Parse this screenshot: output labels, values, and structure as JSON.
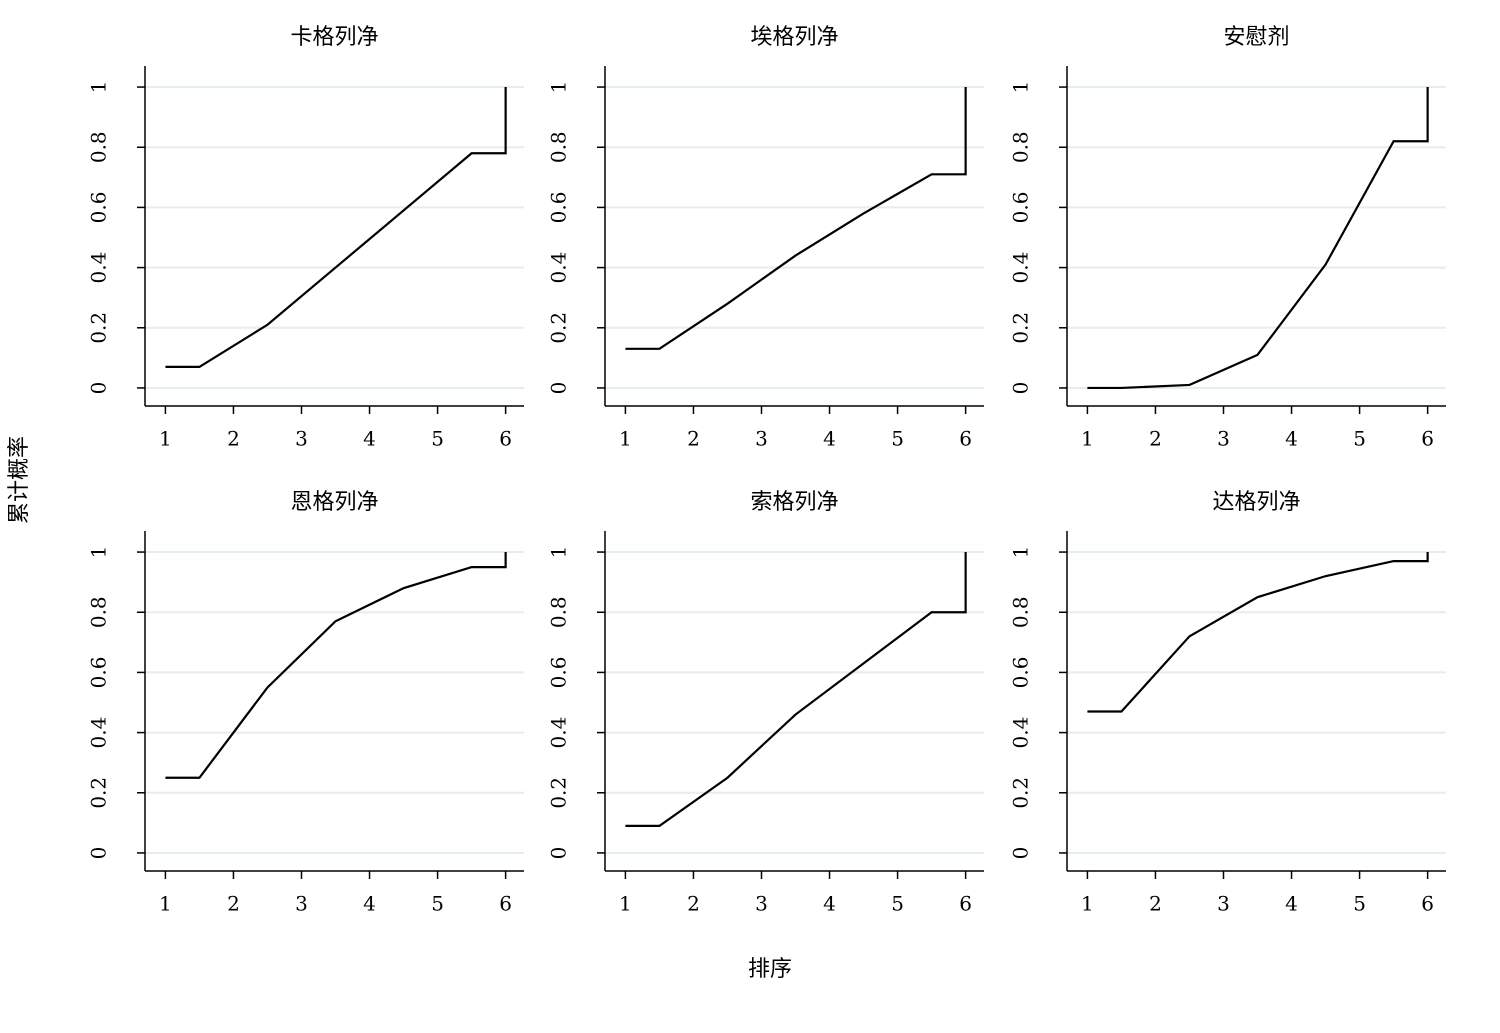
{
  "x_label": "排序",
  "y_label": "累计概率",
  "chart_data": [
    {
      "type": "line",
      "title": "卡格列净",
      "x": [
        1,
        1.5,
        2.5,
        3.5,
        4.5,
        5.5,
        6,
        6
      ],
      "values": [
        0.07,
        0.07,
        0.21,
        0.4,
        0.59,
        0.78,
        0.78,
        1
      ],
      "color": "#000000",
      "xlim": [
        0.7,
        6.27
      ],
      "ylim": [
        -0.06,
        1.07
      ],
      "xticks": [
        1,
        2,
        3,
        4,
        5,
        6
      ],
      "yticks": [
        0,
        0.2,
        0.4,
        0.6,
        0.8,
        1
      ],
      "grid": true
    },
    {
      "type": "line",
      "title": "埃格列净",
      "x": [
        1,
        1.5,
        2.5,
        3.5,
        4.5,
        5.5,
        6,
        6
      ],
      "values": [
        0.13,
        0.13,
        0.28,
        0.44,
        0.58,
        0.71,
        0.71,
        1
      ],
      "color": "#000000",
      "xlim": [
        0.7,
        6.27
      ],
      "ylim": [
        -0.06,
        1.07
      ],
      "xticks": [
        1,
        2,
        3,
        4,
        5,
        6
      ],
      "yticks": [
        0,
        0.2,
        0.4,
        0.6,
        0.8,
        1
      ],
      "grid": true
    },
    {
      "type": "line",
      "title": "安慰剂",
      "x": [
        1,
        1.5,
        2.5,
        3.5,
        4.5,
        5.5,
        6,
        6
      ],
      "values": [
        0,
        0,
        0.01,
        0.11,
        0.41,
        0.82,
        0.82,
        1
      ],
      "color": "#000000",
      "xlim": [
        0.7,
        6.27
      ],
      "ylim": [
        -0.06,
        1.07
      ],
      "xticks": [
        1,
        2,
        3,
        4,
        5,
        6
      ],
      "yticks": [
        0,
        0.2,
        0.4,
        0.6,
        0.8,
        1
      ],
      "grid": true
    },
    {
      "type": "line",
      "title": "恩格列净",
      "x": [
        1,
        1.5,
        2.5,
        3.5,
        4.5,
        5.5,
        6,
        6
      ],
      "values": [
        0.25,
        0.25,
        0.55,
        0.77,
        0.88,
        0.95,
        0.95,
        1
      ],
      "color": "#000000",
      "xlim": [
        0.7,
        6.27
      ],
      "ylim": [
        -0.06,
        1.07
      ],
      "xticks": [
        1,
        2,
        3,
        4,
        5,
        6
      ],
      "yticks": [
        0,
        0.2,
        0.4,
        0.6,
        0.8,
        1
      ],
      "grid": true
    },
    {
      "type": "line",
      "title": "索格列净",
      "x": [
        1,
        1.5,
        2.5,
        3.5,
        4.5,
        5.5,
        6,
        6
      ],
      "values": [
        0.09,
        0.09,
        0.25,
        0.46,
        0.63,
        0.8,
        0.8,
        1
      ],
      "color": "#000000",
      "xlim": [
        0.7,
        6.27
      ],
      "ylim": [
        -0.06,
        1.07
      ],
      "xticks": [
        1,
        2,
        3,
        4,
        5,
        6
      ],
      "yticks": [
        0,
        0.2,
        0.4,
        0.6,
        0.8,
        1
      ],
      "grid": true
    },
    {
      "type": "line",
      "title": "达格列净",
      "x": [
        1,
        1.5,
        2.5,
        3.5,
        4.5,
        5.5,
        6,
        6
      ],
      "values": [
        0.47,
        0.47,
        0.72,
        0.85,
        0.92,
        0.97,
        0.97,
        1
      ],
      "color": "#000000",
      "xlim": [
        0.7,
        6.27
      ],
      "ylim": [
        -0.06,
        1.07
      ],
      "xticks": [
        1,
        2,
        3,
        4,
        5,
        6
      ],
      "yticks": [
        0,
        0.2,
        0.4,
        0.6,
        0.8,
        1
      ],
      "grid": true
    }
  ]
}
